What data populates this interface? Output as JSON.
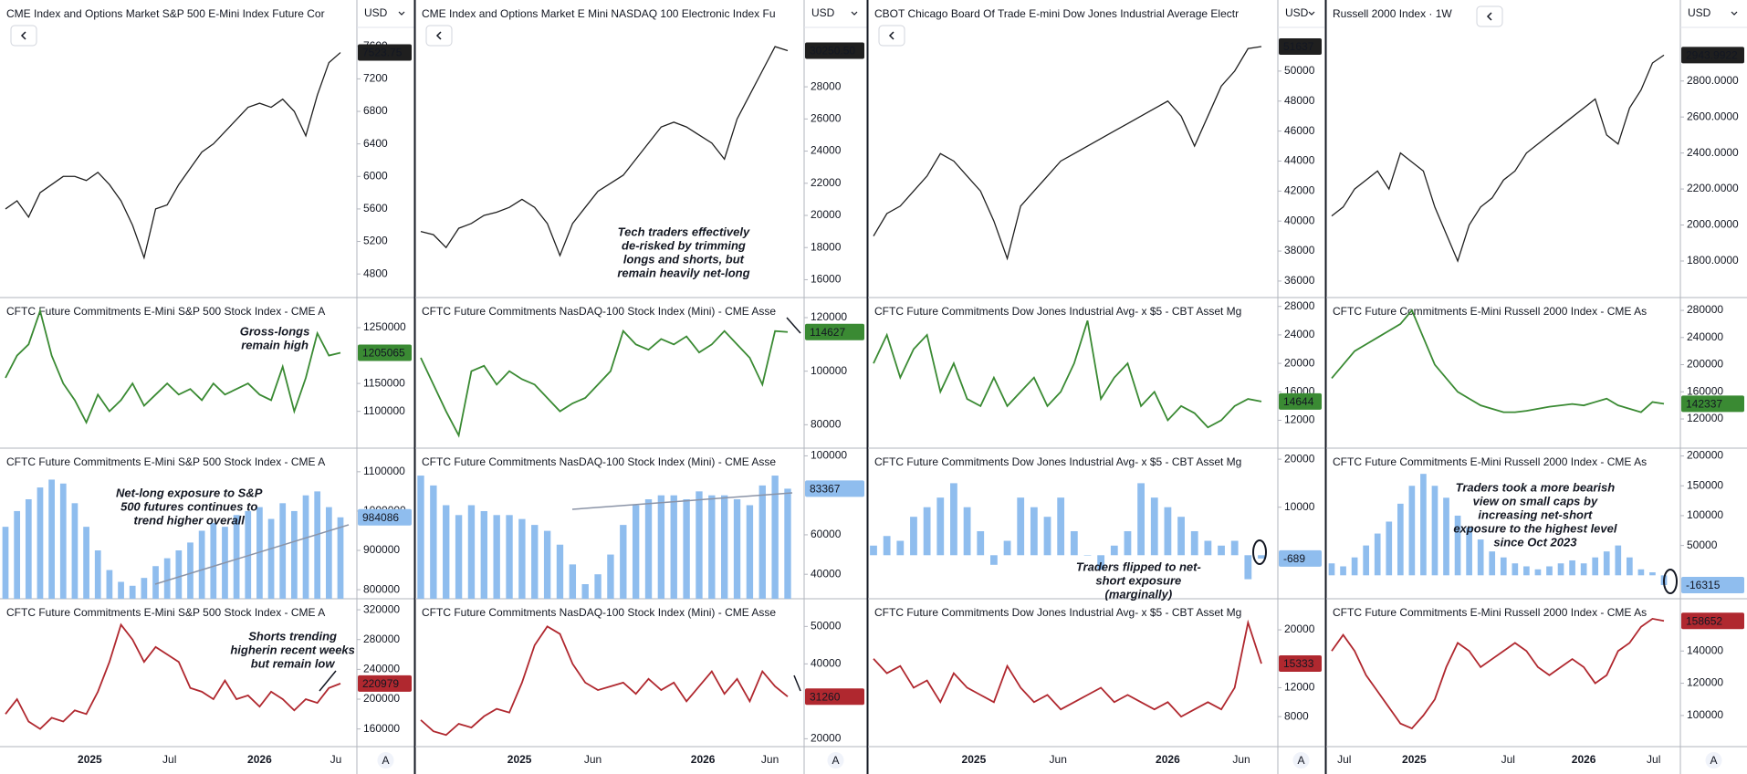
{
  "columns": [
    {
      "currency": "USD",
      "scale_mode": "A",
      "xlim": [
        0,
        29
      ],
      "xticks": [
        {
          "value": 7.3,
          "label": "2025"
        },
        {
          "value": 14.2,
          "label": "Jul"
        },
        {
          "value": 22,
          "label": "2026"
        },
        {
          "value": 28.6,
          "label": "Ju"
        }
      ],
      "panes": [
        {
          "type": "line",
          "title": "CME Index and Options Market S&P 500 E-Mini Index Future Cor",
          "color": "#1f1f1f",
          "ylim": [
            4510,
            8170
          ],
          "yticks": [
            4800,
            5200,
            5600,
            6000,
            6400,
            6800,
            7200,
            7600
          ],
          "values": [
            5600,
            5700,
            5500,
            5800,
            5900,
            6000,
            6000,
            5950,
            6050,
            5900,
            5700,
            5400,
            5000,
            5600,
            5650,
            5900,
            6100,
            6300,
            6400,
            6550,
            6700,
            6850,
            6900,
            6850,
            6950,
            6800,
            6500,
            7000,
            7400,
            7523.75
          ],
          "last_label": "7523.75"
        },
        {
          "type": "line",
          "title": "CFTC Future Commitments E-Mini S&P 500 Stock Index - CME A",
          "color": "#3a8a33",
          "ylim": [
            1034000,
            1304000
          ],
          "yticks": [
            1100000,
            1150000,
            1250000
          ],
          "values": [
            1160000,
            1200000,
            1220000,
            1280000,
            1200000,
            1150000,
            1120000,
            1080000,
            1130000,
            1100000,
            1120000,
            1150000,
            1110000,
            1130000,
            1150000,
            1130000,
            1140000,
            1120000,
            1150000,
            1130000,
            1140000,
            1150000,
            1130000,
            1120000,
            1180000,
            1100000,
            1160000,
            1240000,
            1200000,
            1205065
          ],
          "last_label": "1205065",
          "annotation": [
            "Gross-longs",
            "remain high"
          ]
        },
        {
          "type": "bar",
          "title": "CFTC Future Commitments E-Mini S&P 500 Stock Index - CME A",
          "color": "#8fbdee",
          "ylim": [
            777000,
            1160000
          ],
          "yticks": [
            800000,
            900000,
            1000000,
            1100000
          ],
          "values": [
            960000,
            1000000,
            1030000,
            1060000,
            1080000,
            1070000,
            1020000,
            960000,
            900000,
            850000,
            820000,
            810000,
            830000,
            860000,
            880000,
            900000,
            920000,
            950000,
            970000,
            960000,
            990000,
            1000000,
            1010000,
            980000,
            1020000,
            1000000,
            1040000,
            1050000,
            1010000,
            984086
          ],
          "last_label": "984086",
          "annotation": [
            "Net-long exposure to S&P",
            "500 futures continues to",
            "trend higher overall"
          ]
        },
        {
          "type": "line",
          "title": "CFTC Future Commitments E-Mini S&P 500 Stock Index - CME A",
          "color": "#b0282f",
          "ylim": [
            136300,
            334800
          ],
          "yticks": [
            160000,
            200000,
            240000,
            280000,
            320000
          ],
          "values": [
            180000,
            200000,
            170000,
            160000,
            175000,
            170000,
            185000,
            180000,
            210000,
            250000,
            300000,
            280000,
            250000,
            270000,
            260000,
            250000,
            215000,
            210000,
            200000,
            225000,
            200000,
            205000,
            190000,
            210000,
            200000,
            185000,
            200000,
            195000,
            215000,
            220979
          ],
          "last_label": "220979",
          "annotation": [
            "Shorts trending",
            "higherin recent weeks",
            "but remain low"
          ]
        }
      ]
    },
    {
      "currency": "USD",
      "scale_mode": "A",
      "xlim": [
        0,
        29
      ],
      "xticks": [
        {
          "value": 7.8,
          "label": "2025"
        },
        {
          "value": 13.6,
          "label": "Jun"
        },
        {
          "value": 22.3,
          "label": "2026"
        },
        {
          "value": 27.6,
          "label": "Jun"
        }
      ],
      "panes": [
        {
          "type": "line",
          "title": "CME Index and Options Market E Mini NASDAQ 100 Electronic Index Fu",
          "color": "#1f1f1f",
          "ylim": [
            14890,
            33400
          ],
          "yticks": [
            16000,
            18000,
            20000,
            22000,
            24000,
            26000,
            28000
          ],
          "values": [
            19000,
            18800,
            18000,
            19200,
            19500,
            20000,
            20200,
            20500,
            21000,
            20500,
            19500,
            17500,
            19500,
            20500,
            21500,
            22000,
            22500,
            23500,
            24500,
            25500,
            25800,
            25500,
            25000,
            24500,
            23500,
            26000,
            27500,
            29000,
            30500,
            30250.5
          ],
          "last_label": "30250.50",
          "annotation": [
            "Tech traders effectively",
            "de-risked by trimming",
            "longs and shorts, but",
            "remain heavily net-long"
          ]
        },
        {
          "type": "line",
          "title": "CFTC Future Commitments NasDAQ-100 Stock Index (Mini) - CME Asse",
          "color": "#3a8a33",
          "ylim": [
            71250,
            127500
          ],
          "yticks": [
            80000,
            100000,
            120000
          ],
          "values": [
            105000,
            95000,
            85000,
            76000,
            100000,
            102000,
            95000,
            100000,
            97000,
            95000,
            90000,
            85000,
            88000,
            90000,
            95000,
            100000,
            115000,
            110000,
            108000,
            112000,
            110000,
            113000,
            107000,
            110000,
            115000,
            110000,
            105000,
            95000,
            115000,
            114627
          ],
          "last_label": "114627"
        },
        {
          "type": "bar",
          "title": "CFTC Future Commitments NasDAQ-100 Stock Index (Mini) - CME Asse",
          "color": "#8fbdee",
          "ylim": [
            27600,
            103900
          ],
          "yticks": [
            40000,
            60000,
            100000
          ],
          "values": [
            90000,
            85000,
            75000,
            70000,
            75000,
            72000,
            70000,
            70000,
            68000,
            65000,
            62000,
            55000,
            45000,
            35000,
            40000,
            50000,
            65000,
            75000,
            78000,
            80000,
            80000,
            78000,
            82000,
            80000,
            80000,
            78000,
            75000,
            85000,
            90000,
            83367
          ],
          "last_label": "83367"
        },
        {
          "type": "line",
          "title": "CFTC Future Commitments NasDAQ-100 Stock Index (Mini) - CME Asse",
          "color": "#b0282f",
          "ylim": [
            17900,
            57400
          ],
          "yticks": [
            20000,
            40000,
            50000
          ],
          "values": [
            25000,
            22000,
            21000,
            24000,
            23000,
            26000,
            28000,
            27000,
            35000,
            45000,
            50000,
            48000,
            40000,
            35000,
            33000,
            34000,
            35000,
            32000,
            36000,
            33000,
            35000,
            30000,
            34000,
            38000,
            32000,
            36000,
            30000,
            38000,
            34000,
            31260
          ],
          "last_label": "31260"
        }
      ]
    },
    {
      "currency": "USD",
      "scale_mode": "A",
      "xlim": [
        0,
        29
      ],
      "xticks": [
        {
          "value": 7.5,
          "label": "2025"
        },
        {
          "value": 13.8,
          "label": "Jun"
        },
        {
          "value": 22,
          "label": "2026"
        },
        {
          "value": 27.5,
          "label": "Jun"
        }
      ],
      "panes": [
        {
          "type": "line",
          "title": "CBOT Chicago Board Of Trade E-mini Dow Jones Industrial Average Electr",
          "color": "#1f1f1f",
          "ylim": [
            34900,
            54740
          ],
          "yticks": [
            36000,
            38000,
            40000,
            42000,
            44000,
            46000,
            48000,
            50000
          ],
          "values": [
            39000,
            40500,
            41000,
            42000,
            43000,
            44500,
            44000,
            43000,
            42000,
            40000,
            37500,
            41000,
            42000,
            43000,
            44000,
            44500,
            45000,
            45500,
            46000,
            46500,
            47000,
            47500,
            48000,
            47000,
            45000,
            47000,
            49000,
            50000,
            51500,
            51637
          ],
          "last_label": "51637"
        },
        {
          "type": "line",
          "title": "CFTC Future Commitments Dow Jones Industrial Avg- x $5 - CBT Asset Mg",
          "color": "#3a8a33",
          "ylim": [
            8080,
            29250
          ],
          "yticks": [
            12000,
            16000,
            20000,
            24000,
            28000
          ],
          "values": [
            20000,
            24000,
            18000,
            22000,
            24000,
            16000,
            20000,
            15000,
            14000,
            18000,
            14000,
            16000,
            18000,
            14000,
            16000,
            20000,
            26000,
            15000,
            18000,
            20000,
            14000,
            16000,
            12000,
            14000,
            13000,
            11000,
            12000,
            14000,
            15000,
            14644
          ],
          "last_label": "14644"
        },
        {
          "type": "bar",
          "title": "CFTC Future Commitments Dow Jones Industrial Avg- x $5 - CBT Asset Mg",
          "color": "#8fbdee",
          "ylim": [
            -9070,
            22300
          ],
          "yticks": [
            10000,
            20000
          ],
          "values": [
            2000,
            4000,
            3000,
            8000,
            10000,
            12000,
            15000,
            10000,
            5000,
            -2000,
            3000,
            12000,
            10000,
            8000,
            12000,
            5000,
            0,
            -3000,
            2000,
            5000,
            15000,
            12000,
            10000,
            8000,
            5000,
            3000,
            2000,
            3000,
            -5000,
            -689
          ],
          "last_label": "-689",
          "annotation": [
            "Traders flipped to net-",
            "short exposure",
            "(marginally)"
          ]
        },
        {
          "type": "line",
          "title": "CFTC Future Commitments Dow Jones Industrial Avg- x $5 - CBT Asset Mg",
          "color": "#b0282f",
          "ylim": [
            3850,
            24300
          ],
          "yticks": [
            8000,
            12000,
            20000
          ],
          "values": [
            16000,
            14000,
            15000,
            12000,
            13000,
            10000,
            14000,
            12000,
            11000,
            10000,
            15000,
            12000,
            10000,
            11000,
            9000,
            10000,
            11000,
            12000,
            10000,
            11000,
            10000,
            9000,
            10000,
            8000,
            9000,
            10000,
            9000,
            12000,
            21000,
            15333
          ],
          "last_label": "15333"
        }
      ]
    },
    {
      "currency": "USD",
      "scale_mode": "A",
      "xlim": [
        0,
        29
      ],
      "xticks": [
        {
          "value": 1.1,
          "label": "Jul"
        },
        {
          "value": 7.2,
          "label": "2025"
        },
        {
          "value": 15.4,
          "label": "Jul"
        },
        {
          "value": 22,
          "label": "2026"
        },
        {
          "value": 28.1,
          "label": "Jul"
        }
      ],
      "panes": [
        {
          "type": "line",
          "title": "Russell 2000 Index · 1W",
          "color": "#1f1f1f",
          "ylim": [
            1597,
            3250
          ],
          "yticks": [
            {
              "value": 1800,
              "label": "1800.0000"
            },
            {
              "value": 2000,
              "label": "2000.0000"
            },
            {
              "value": 2200,
              "label": "2200.0000"
            },
            {
              "value": 2400,
              "label": "2400.0000"
            },
            {
              "value": 2600,
              "label": "2600.0000"
            },
            {
              "value": 2800,
              "label": "2800.0000"
            }
          ],
          "values": [
            2050,
            2100,
            2200,
            2250,
            2300,
            2200,
            2400,
            2350,
            2300,
            2100,
            1950,
            1800,
            2000,
            2100,
            2150,
            2250,
            2300,
            2400,
            2450,
            2500,
            2550,
            2600,
            2650,
            2700,
            2500,
            2450,
            2650,
            2750,
            2900,
            2943.9922
          ],
          "last_label": "2943.9922"
        },
        {
          "type": "line",
          "title": "CFTC Future Commitments E-Mini Russell 2000 Index - CME As",
          "color": "#3a8a33",
          "ylim": [
            77000,
            298900
          ],
          "yticks": [
            120000,
            160000,
            200000,
            240000,
            280000
          ],
          "values": [
            180000,
            200000,
            220000,
            230000,
            240000,
            250000,
            260000,
            280000,
            240000,
            200000,
            180000,
            160000,
            150000,
            140000,
            135000,
            130000,
            130000,
            132000,
            135000,
            138000,
            140000,
            142000,
            140000,
            145000,
            150000,
            140000,
            135000,
            130000,
            145000,
            142337
          ],
          "last_label": "142337"
        },
        {
          "type": "bar",
          "title": "CFTC Future Commitments E-Mini Russell 2000 Index - CME As",
          "color": "#8fbdee",
          "ylim": [
            -39300,
            213100
          ],
          "yticks": [
            50000,
            100000,
            150000,
            200000
          ],
          "values": [
            20000,
            15000,
            30000,
            50000,
            70000,
            90000,
            120000,
            150000,
            170000,
            150000,
            130000,
            100000,
            80000,
            60000,
            40000,
            30000,
            20000,
            15000,
            10000,
            15000,
            20000,
            25000,
            20000,
            30000,
            40000,
            50000,
            30000,
            10000,
            5000,
            -16315
          ],
          "last_label": "-16315",
          "annotation": [
            "Traders took a more bearish",
            "view on small caps by",
            "increasing net-short",
            "exposure to the highest level",
            "since Oct 2023"
          ]
        },
        {
          "type": "line",
          "title": "CFTC Future Commitments E-Mini Russell 2000 Index - CME As",
          "color": "#b0282f",
          "ylim": [
            80700,
            172400
          ],
          "yticks": [
            100000,
            120000,
            140000
          ],
          "values": [
            140000,
            150000,
            140000,
            125000,
            115000,
            105000,
            95000,
            92000,
            100000,
            110000,
            130000,
            145000,
            140000,
            130000,
            135000,
            140000,
            145000,
            140000,
            130000,
            125000,
            130000,
            135000,
            130000,
            120000,
            125000,
            140000,
            145000,
            155000,
            160000,
            158652
          ],
          "last_label": "158652"
        }
      ]
    }
  ]
}
